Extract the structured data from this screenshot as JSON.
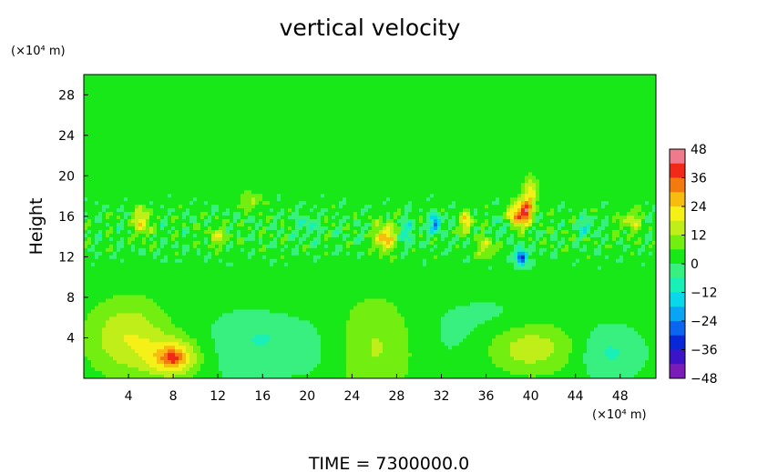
{
  "chart_data": {
    "type": "heatmap",
    "title": "vertical velocity",
    "ylabel": "Height",
    "y_unit": "(×10⁴ m)",
    "x_unit": "(×10⁴ m)",
    "footer": "TIME = 7300000.0",
    "x_ticks": [
      4,
      8,
      12,
      16,
      20,
      24,
      28,
      32,
      36,
      40,
      44,
      48
    ],
    "y_ticks": [
      4,
      8,
      12,
      16,
      20,
      24,
      28
    ],
    "xlim": [
      0,
      51.2
    ],
    "ylim": [
      0,
      30
    ],
    "colorbar": {
      "ticks": [
        48,
        36,
        24,
        12,
        0,
        -12,
        -24,
        -36,
        -48
      ],
      "range": [
        -48,
        48
      ],
      "levels": 16
    },
    "background_value": 2,
    "features": [
      {
        "x": 4.0,
        "y": 4.0,
        "sx": 2.5,
        "sy": 2.6,
        "value": 16
      },
      {
        "x": 8.0,
        "y": 2.0,
        "sx": 1.6,
        "sy": 1.3,
        "value": 24
      },
      {
        "x": 8.0,
        "y": 2.0,
        "sx": 0.6,
        "sy": 0.5,
        "value": 12
      },
      {
        "x": 14.0,
        "y": 3.0,
        "sx": 3.0,
        "sy": 3.0,
        "value": -4
      },
      {
        "x": 16.0,
        "y": 4.0,
        "sx": 1.5,
        "sy": 1.2,
        "value": -5
      },
      {
        "x": 21.0,
        "y": 3.0,
        "sx": 2.5,
        "sy": 2.5,
        "value": -4
      },
      {
        "x": 26.0,
        "y": 3.0,
        "sx": 2.6,
        "sy": 3.5,
        "value": 11
      },
      {
        "x": 33.0,
        "y": 4.0,
        "sx": 3.0,
        "sy": 2.5,
        "value": -3
      },
      {
        "x": 40.0,
        "y": 3.0,
        "sx": 2.8,
        "sy": 1.8,
        "value": 14
      },
      {
        "x": 47.0,
        "y": 2.5,
        "sx": 2.0,
        "sy": 1.8,
        "value": -9
      },
      {
        "x": 38.0,
        "y": 6.0,
        "sx": 3.0,
        "sy": 1.5,
        "value": -3
      },
      {
        "x": 5.2,
        "y": 15.5,
        "sx": 0.45,
        "sy": 1.0,
        "value": 22
      },
      {
        "x": 27.0,
        "y": 14.0,
        "sx": 0.6,
        "sy": 1.0,
        "value": 26
      },
      {
        "x": 31.5,
        "y": 15.3,
        "sx": 0.35,
        "sy": 0.6,
        "value": -30
      },
      {
        "x": 34.3,
        "y": 15.5,
        "sx": 0.35,
        "sy": 0.7,
        "value": 24
      },
      {
        "x": 38.7,
        "y": 16.0,
        "sx": 0.5,
        "sy": 1.0,
        "value": 28
      },
      {
        "x": 39.6,
        "y": 16.5,
        "sx": 0.4,
        "sy": 0.8,
        "value": 34
      },
      {
        "x": 40.0,
        "y": 18.5,
        "sx": 0.5,
        "sy": 1.0,
        "value": 18
      },
      {
        "x": 39.2,
        "y": 12.0,
        "sx": 0.35,
        "sy": 0.6,
        "value": -36
      },
      {
        "x": 37.8,
        "y": 14.8,
        "sx": 0.5,
        "sy": 0.6,
        "value": -12
      },
      {
        "x": 45.0,
        "y": 15.0,
        "sx": 0.6,
        "sy": 0.6,
        "value": -10
      },
      {
        "x": 20.0,
        "y": 15.0,
        "sx": 0.6,
        "sy": 0.8,
        "value": -8
      },
      {
        "x": 12.0,
        "y": 14.0,
        "sx": 0.7,
        "sy": 0.7,
        "value": 12
      },
      {
        "x": 49.0,
        "y": 15.5,
        "sx": 0.7,
        "sy": 0.8,
        "value": 13
      },
      {
        "x": 15.0,
        "y": 17.5,
        "sx": 0.7,
        "sy": 0.6,
        "value": 11
      },
      {
        "x": 36.0,
        "y": 13.0,
        "sx": 0.6,
        "sy": 0.7,
        "value": 14
      },
      {
        "x": 29.0,
        "y": 14.5,
        "sx": 0.6,
        "sy": 0.8,
        "value": -10
      }
    ]
  }
}
